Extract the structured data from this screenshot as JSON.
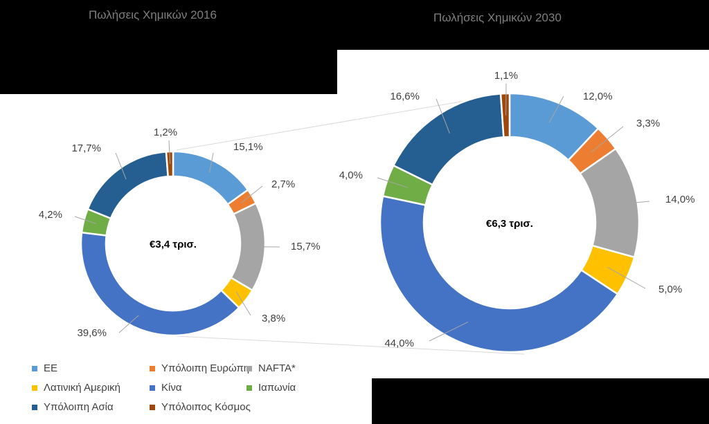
{
  "chart_data": [
    {
      "type": "pie",
      "title": "Πωλήσεις Χημικών 2016",
      "center_label": "€3,4 τρισ.",
      "categories": [
        "ΕΕ",
        "Υπόλοιπη Ευρώπη",
        "NAFTA*",
        "Λατινική Αμερική",
        "Κίνα",
        "Ιαπωνία",
        "Υπόλοιπη Ασία",
        "Υπόλοιπος Κόσμος"
      ],
      "values": [
        15.1,
        2.7,
        15.7,
        3.8,
        39.6,
        4.2,
        17.7,
        1.2
      ],
      "data_labels": [
        "15,1%",
        "2,7%",
        "15,7%",
        "3,8%",
        "39,6%",
        "4,2%",
        "17,7%",
        "1,2%"
      ]
    },
    {
      "type": "pie",
      "title": "Πωλήσεις Χημικών 2030",
      "center_label": "€6,3 τρισ.",
      "categories": [
        "ΕΕ",
        "Υπόλοιπη Ευρώπη",
        "NAFTA*",
        "Λατινική Αμερική",
        "Κίνα",
        "Ιαπωνία",
        "Υπόλοιπη Ασία",
        "Υπόλοιπος Κόσμος"
      ],
      "values": [
        12.0,
        3.3,
        14.0,
        5.0,
        44.0,
        4.0,
        16.6,
        1.1
      ],
      "data_labels": [
        "12,0%",
        "3,3%",
        "14,0%",
        "5,0%",
        "44,0%",
        "4,0%",
        "16,6%",
        "1,1%"
      ]
    }
  ],
  "legend": [
    {
      "label": "ΕΕ",
      "color": "#5b9bd5"
    },
    {
      "label": "Υπόλοιπη Ευρώπη",
      "color": "#ed7d31"
    },
    {
      "label": "NAFTA*",
      "color": "#a5a5a5"
    },
    {
      "label": "Λατινική Αμερική",
      "color": "#ffc000"
    },
    {
      "label": "Κίνα",
      "color": "#4472c4"
    },
    {
      "label": "Ιαπωνία",
      "color": "#70ad47"
    },
    {
      "label": "Υπόλοιπη Ασία",
      "color": "#255e91"
    },
    {
      "label": "Υπόλοιπος Κόσμος",
      "color": "#9e480e"
    }
  ]
}
